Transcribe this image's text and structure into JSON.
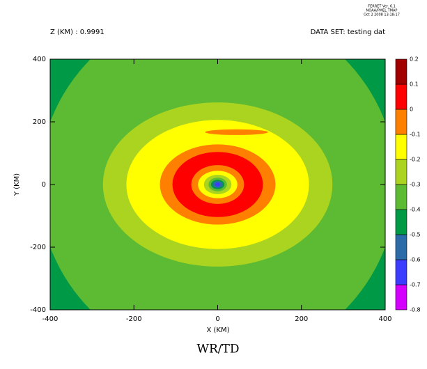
{
  "chart_data": {
    "type": "contour",
    "title": "WR/TD",
    "header_lines": [
      "FERRET Ver. 6.1",
      "NOAA/PMEL TMAP",
      "Oct  2 2008 13:18:17"
    ],
    "left_label": "Z (KM) : 0.9991",
    "right_label": "DATA SET: testing dat",
    "xlabel": "X (KM)",
    "ylabel": "Y (KM)",
    "xlim": [
      -400,
      400
    ],
    "ylim": [
      -400,
      400
    ],
    "xticks": [
      -400,
      -200,
      0,
      200,
      400
    ],
    "yticks": [
      -400,
      -200,
      0,
      200,
      400
    ],
    "levels": [
      -0.8,
      -0.7,
      -0.6,
      -0.5,
      -0.4,
      -0.3,
      -0.2,
      -0.1,
      0,
      0.1,
      0.2
    ],
    "colors": [
      "#d400ff",
      "#3c3cff",
      "#2b6ba8",
      "#009a46",
      "#5cba33",
      "#aad41f",
      "#ffff00",
      "#ff8000",
      "#ff0000",
      "#a00000"
    ],
    "background_level": -0.5,
    "regions": [
      {
        "level": -0.4,
        "cx": 0,
        "cy": 0,
        "rx": 427,
        "ry": 569
      },
      {
        "level": -0.3,
        "cx": 0,
        "cy": 0,
        "rx": 274,
        "ry": 262
      },
      {
        "level": -0.2,
        "cx": 0,
        "cy": 0,
        "rx": 218,
        "ry": 206
      },
      {
        "level": -0.1,
        "cx": 45,
        "cy": 167,
        "rx": 75,
        "ry": 9
      },
      {
        "level": -0.1,
        "cx": 0,
        "cy": 0,
        "rx": 138,
        "ry": 128
      },
      {
        "level": 0,
        "cx": 0,
        "cy": 0,
        "rx": 108,
        "ry": 104
      },
      {
        "level": -0.1,
        "cx": 0,
        "cy": 0,
        "rx": 63,
        "ry": 62
      },
      {
        "level": -0.2,
        "cx": 0,
        "cy": 0,
        "rx": 47,
        "ry": 44
      },
      {
        "level": -0.3,
        "cx": 0,
        "cy": 0,
        "rx": 33,
        "ry": 31
      },
      {
        "level": -0.4,
        "cx": 0,
        "cy": 0,
        "rx": 22,
        "ry": 22
      },
      {
        "level": -0.5,
        "cx": 0,
        "cy": 0,
        "rx": 16,
        "ry": 15
      },
      {
        "level": -0.6,
        "cx": 0,
        "cy": 0,
        "rx": 12,
        "ry": 11
      },
      {
        "level": -0.7,
        "cx": 0,
        "cy": 0,
        "rx": 6,
        "ry": 6
      }
    ]
  }
}
